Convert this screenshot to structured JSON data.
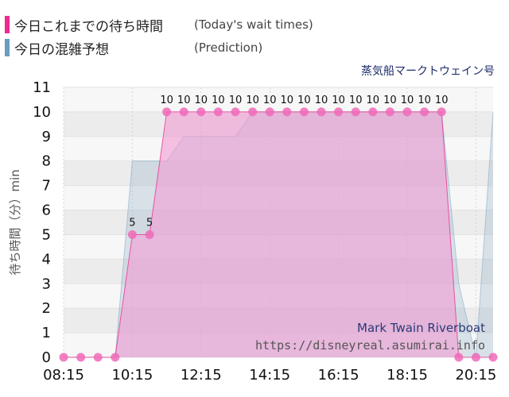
{
  "legend": {
    "today_title": "今日これまでの待ち時間",
    "today_sub": "(Today's wait times)",
    "prediction_title": "今日の混雑予想",
    "prediction_sub": "(Prediction)"
  },
  "attraction_name": "蒸気船マークトウェイン号",
  "watermark": {
    "name_en": "Mark Twain Riverboat",
    "url": "https://disneyreal.asumirai.info"
  },
  "colors": {
    "today": "#ee2a8f",
    "today_fill": "#f19bd3",
    "prediction": "#6a9cc0",
    "prediction_fill": "#cdb6d4",
    "plot_band_dark": "#ececec",
    "plot_band_light": "#f7f7f7"
  },
  "chart_data": {
    "type": "area",
    "ylabel": "待ち時間（分）min",
    "xlabel": "",
    "ylim": [
      0,
      11
    ],
    "yticks": [
      0,
      1,
      2,
      3,
      4,
      5,
      6,
      7,
      8,
      9,
      10,
      11
    ],
    "xlim": [
      "08:15",
      "20:45"
    ],
    "xticks": [
      "08:15",
      "10:15",
      "12:15",
      "14:15",
      "16:15",
      "18:15",
      "20:15"
    ],
    "grid": true,
    "series": [
      {
        "name": "今日これまでの待ち時間",
        "x": [
          "08:15",
          "08:45",
          "09:15",
          "09:45",
          "10:15",
          "10:45",
          "11:15",
          "11:45",
          "12:15",
          "12:45",
          "13:15",
          "13:45",
          "14:15",
          "14:45",
          "15:15",
          "15:45",
          "16:15",
          "16:45",
          "17:15",
          "17:45",
          "18:15",
          "18:45",
          "19:15",
          "19:45",
          "20:15",
          "20:45"
        ],
        "values": [
          0,
          0,
          0,
          0,
          5,
          5,
          10,
          10,
          10,
          10,
          10,
          10,
          10,
          10,
          10,
          10,
          10,
          10,
          10,
          10,
          10,
          10,
          10,
          0,
          0,
          0
        ],
        "labeled": [
          false,
          false,
          false,
          false,
          true,
          true,
          true,
          true,
          true,
          true,
          true,
          true,
          true,
          true,
          true,
          true,
          true,
          true,
          true,
          true,
          true,
          true,
          true,
          false,
          false,
          false
        ]
      },
      {
        "name": "今日の混雑予想",
        "x": [
          "08:15",
          "08:45",
          "09:15",
          "09:45",
          "10:15",
          "10:45",
          "11:15",
          "11:45",
          "12:15",
          "12:45",
          "13:15",
          "13:45",
          "14:15",
          "14:45",
          "15:15",
          "15:45",
          "16:15",
          "16:45",
          "17:15",
          "17:45",
          "18:15",
          "18:45",
          "19:15",
          "19:45",
          "20:15",
          "20:45"
        ],
        "values": [
          0,
          0,
          0,
          0,
          8,
          8,
          8,
          9,
          9,
          9,
          9,
          10,
          10,
          10,
          10,
          10,
          10,
          10,
          10,
          10,
          10,
          10,
          10,
          3,
          0,
          10
        ]
      }
    ]
  }
}
